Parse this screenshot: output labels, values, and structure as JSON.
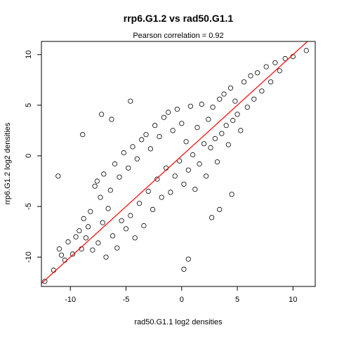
{
  "chart_data": {
    "type": "scatter",
    "title": "rrp6.G1.2 vs rad50.G1.1",
    "subtitle": "Pearson correlation =  0.92",
    "xlabel": "rad50.G1.1 log2 densities",
    "ylabel": "rrp6.G1.2 log2 densities",
    "xlim": [
      -12.6,
      12.0
    ],
    "ylim": [
      -12.9,
      11.3
    ],
    "xticks": [
      -10,
      -5,
      0,
      5,
      10
    ],
    "yticks": [
      -10,
      -5,
      0,
      5,
      10
    ],
    "grid": false,
    "legend": "none",
    "correlation": 0.92,
    "fit_line": {
      "intercept": 0.0,
      "slope": 1.0,
      "color": "#ff0000"
    },
    "point_color": "#000000",
    "points": [
      [
        -12.3,
        -12.4
      ],
      [
        -11.5,
        -11.3
      ],
      [
        -11.0,
        -9.2
      ],
      [
        -10.8,
        -9.8
      ],
      [
        -10.5,
        -10.3
      ],
      [
        -10.2,
        -8.5
      ],
      [
        -9.8,
        -9.7
      ],
      [
        -9.5,
        -8.0
      ],
      [
        -9.2,
        -7.4
      ],
      [
        -9.0,
        -9.2
      ],
      [
        -8.8,
        -6.2
      ],
      [
        -8.6,
        -8.1
      ],
      [
        -8.4,
        -7.0
      ],
      [
        -8.2,
        -5.5
      ],
      [
        -8.0,
        -9.3
      ],
      [
        -7.8,
        -3.0
      ],
      [
        -7.6,
        -2.5
      ],
      [
        -7.5,
        -8.6
      ],
      [
        -7.3,
        -4.1
      ],
      [
        -7.1,
        -6.6
      ],
      [
        -7.0,
        -1.8
      ],
      [
        -6.8,
        -10.0
      ],
      [
        -6.6,
        -5.2
      ],
      [
        -6.4,
        -3.4
      ],
      [
        -6.2,
        -7.9
      ],
      [
        -6.0,
        -0.8
      ],
      [
        -5.8,
        -9.1
      ],
      [
        -5.6,
        -2.1
      ],
      [
        -5.4,
        -6.4
      ],
      [
        -5.2,
        0.3
      ],
      [
        -5.0,
        -7.2
      ],
      [
        -4.8,
        -1.2
      ],
      [
        -4.6,
        -5.9
      ],
      [
        -4.4,
        0.9
      ],
      [
        -4.2,
        -8.1
      ],
      [
        -4.0,
        -0.3
      ],
      [
        -3.8,
        -4.7
      ],
      [
        -3.6,
        1.6
      ],
      [
        -3.4,
        -6.9
      ],
      [
        -3.2,
        2.1
      ],
      [
        -3.0,
        -3.5
      ],
      [
        -2.8,
        0.7
      ],
      [
        -2.6,
        -5.3
      ],
      [
        -2.4,
        3.0
      ],
      [
        -2.2,
        -2.3
      ],
      [
        -2.0,
        1.9
      ],
      [
        -1.8,
        -4.1
      ],
      [
        -1.6,
        3.8
      ],
      [
        -1.4,
        -1.2
      ],
      [
        -1.2,
        4.3
      ],
      [
        -1.0,
        -3.6
      ],
      [
        -0.8,
        2.5
      ],
      [
        -0.6,
        -2.0
      ],
      [
        -0.4,
        4.6
      ],
      [
        -0.2,
        -0.5
      ],
      [
        0.0,
        3.2
      ],
      [
        0.2,
        -2.8
      ],
      [
        0.4,
        1.4
      ],
      [
        0.6,
        -1.4
      ],
      [
        0.8,
        4.9
      ],
      [
        1.0,
        0.1
      ],
      [
        1.2,
        -3.3
      ],
      [
        1.4,
        2.8
      ],
      [
        1.6,
        -0.8
      ],
      [
        1.8,
        5.1
      ],
      [
        2.0,
        1.2
      ],
      [
        2.2,
        -2.0
      ],
      [
        2.4,
        3.6
      ],
      [
        2.6,
        0.8
      ],
      [
        2.8,
        4.8
      ],
      [
        3.0,
        1.7
      ],
      [
        3.2,
        -0.6
      ],
      [
        3.4,
        5.6
      ],
      [
        3.6,
        2.2
      ],
      [
        3.8,
        6.1
      ],
      [
        4.0,
        3.0
      ],
      [
        4.2,
        1.1
      ],
      [
        4.4,
        6.7
      ],
      [
        4.6,
        3.5
      ],
      [
        4.8,
        5.4
      ],
      [
        5.0,
        4.1
      ],
      [
        5.3,
        2.5
      ],
      [
        5.6,
        7.3
      ],
      [
        5.9,
        4.8
      ],
      [
        6.2,
        7.9
      ],
      [
        6.5,
        5.6
      ],
      [
        6.8,
        8.2
      ],
      [
        7.2,
        6.4
      ],
      [
        7.6,
        8.8
      ],
      [
        8.0,
        7.3
      ],
      [
        8.4,
        9.2
      ],
      [
        8.8,
        8.4
      ],
      [
        9.3,
        9.6
      ],
      [
        10.0,
        9.8
      ],
      [
        11.2,
        10.4
      ],
      [
        -11.1,
        -2.0
      ],
      [
        -8.9,
        2.1
      ],
      [
        -7.2,
        4.1
      ],
      [
        0.2,
        -11.2
      ],
      [
        0.6,
        -10.2
      ],
      [
        3.4,
        -5.3
      ],
      [
        4.5,
        -3.8
      ],
      [
        2.7,
        -6.1
      ],
      [
        -4.6,
        5.4
      ],
      [
        -6.3,
        3.6
      ]
    ]
  }
}
